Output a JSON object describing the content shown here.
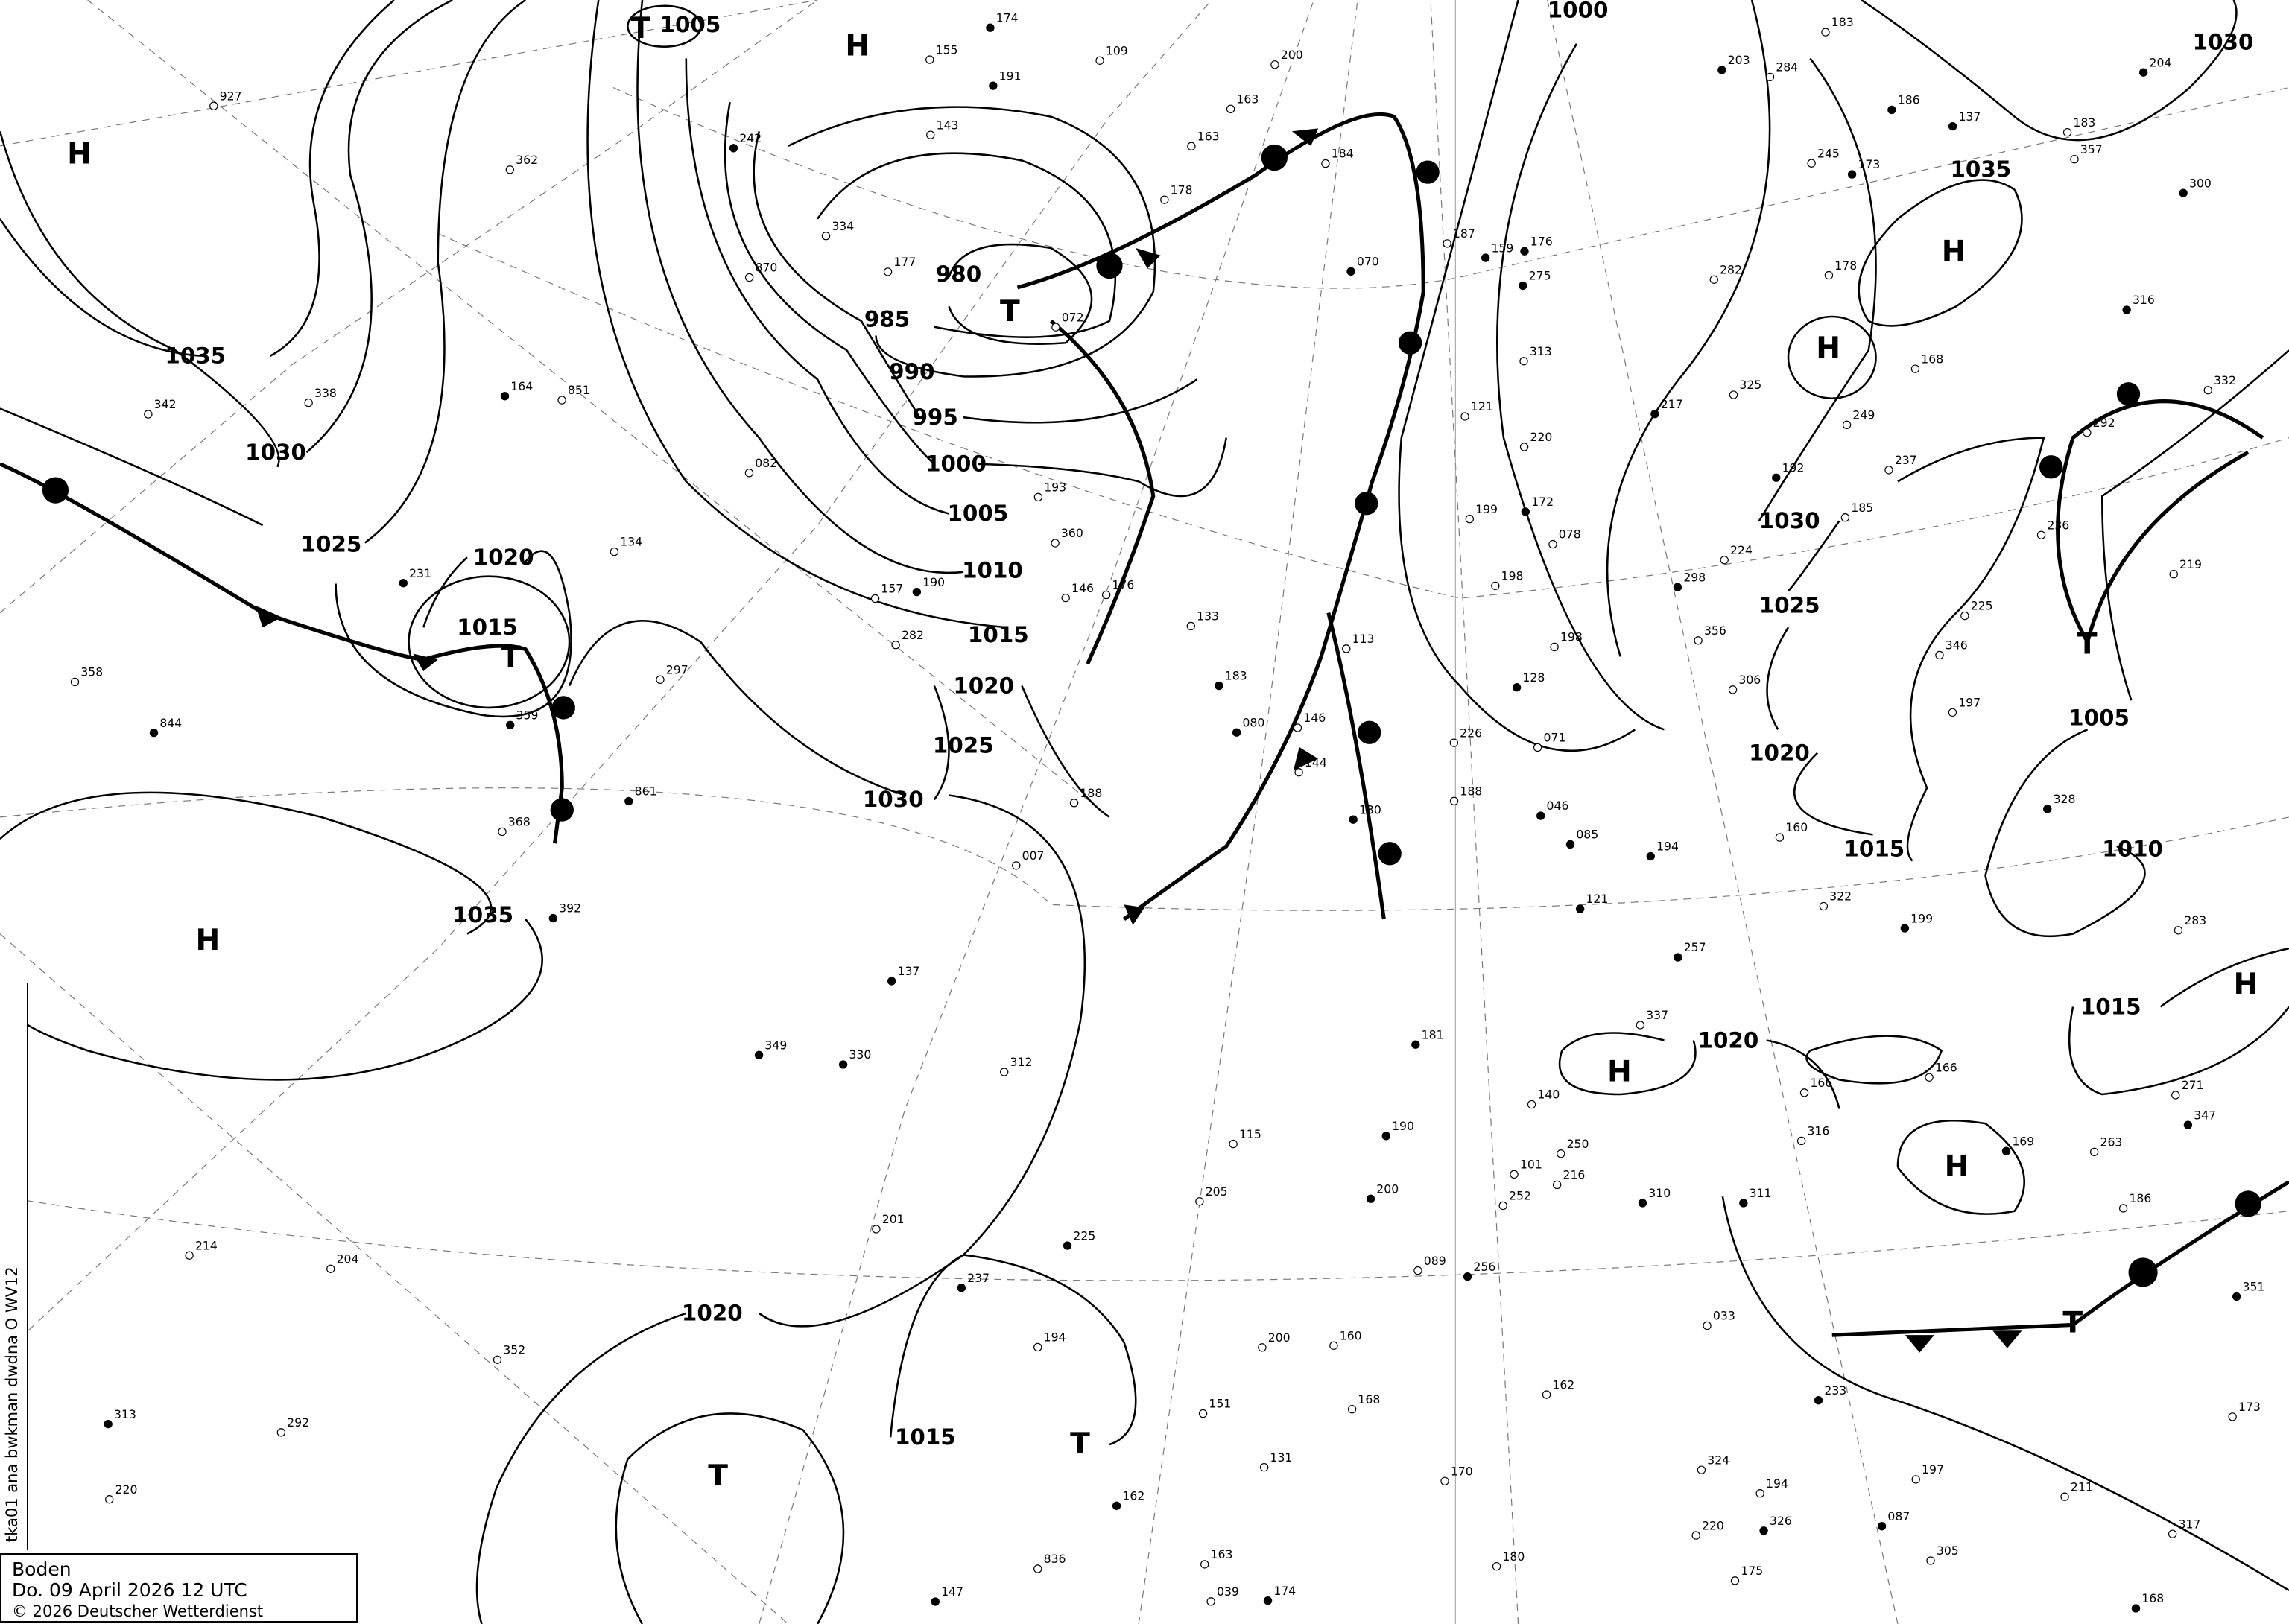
{
  "legend": {
    "region": "Boden",
    "datetime": "Do. 09 April 2026 12 UTC",
    "copyright": "© 2026 Deutscher Wetterdienst"
  },
  "product_code": "tka01 ana bwkman dwdna O WV12",
  "isobar_labels": [
    "1005",
    "1035",
    "1030",
    "1025",
    "1020",
    "1015",
    "980",
    "985",
    "990",
    "995",
    "1000",
    "1005",
    "1010",
    "1015",
    "1020",
    "1025",
    "1030",
    "1035",
    "1020",
    "1015",
    "1000",
    "1030",
    "1035",
    "1030",
    "1025",
    "1020",
    "1015",
    "1005",
    "1010",
    "1015",
    "1020"
  ],
  "pressure_centers": [
    "T",
    "H",
    "H",
    "T",
    "T",
    "H",
    "T",
    "T",
    "H",
    "H",
    "T",
    "H",
    "H",
    "H",
    "T"
  ],
  "stations": [
    "392",
    "342",
    "368",
    "313",
    "297",
    "204",
    "242",
    "851",
    "870",
    "861",
    "927",
    "836",
    "844",
    "072",
    "082",
    "164",
    "134",
    "214",
    "231",
    "220",
    "292",
    "330",
    "362",
    "358",
    "349",
    "360",
    "352",
    "359",
    "338",
    "334",
    "225",
    "180",
    "162",
    "181",
    "200",
    "176",
    "200",
    "157",
    "146",
    "147",
    "151",
    "144",
    "237",
    "220",
    "177",
    "190",
    "168",
    "194",
    "191",
    "155",
    "200",
    "159",
    "163",
    "188",
    "190",
    "193",
    "187",
    "174",
    "184",
    "178",
    "183",
    "201",
    "205",
    "162",
    "146",
    "143",
    "137",
    "133",
    "131",
    "130",
    "140",
    "163",
    "128",
    "115",
    "170",
    "174",
    "160",
    "163",
    "121",
    "113",
    "089",
    "080",
    "101",
    "039",
    "070",
    "007",
    "109",
    "085",
    "282",
    "312",
    "310",
    "324",
    "346",
    "316",
    "306",
    "283",
    "275",
    "249",
    "160",
    "203",
    "252",
    "322",
    "300",
    "284",
    "216",
    "204",
    "237",
    "325",
    "328",
    "337",
    "317",
    "326",
    "313",
    "305",
    "298",
    "282",
    "263",
    "257",
    "250",
    "224",
    "199",
    "198",
    "186",
    "176",
    "194",
    "211",
    "233",
    "245",
    "219",
    "217",
    "198",
    "175",
    "186",
    "178",
    "185",
    "194",
    "168",
    "166",
    "173",
    "188",
    "183",
    "172",
    "166",
    "173",
    "168",
    "197",
    "199",
    "137",
    "225",
    "220",
    "169",
    "121",
    "078",
    "087",
    "033",
    "271",
    "311",
    "292",
    "197",
    "046",
    "071",
    "183",
    "192",
    "226",
    "236",
    "256",
    "316",
    "357",
    "351",
    "332",
    "356",
    "347"
  ],
  "colors": {
    "ink": "#000000",
    "grid": "#777777",
    "background": "#ffffff"
  }
}
